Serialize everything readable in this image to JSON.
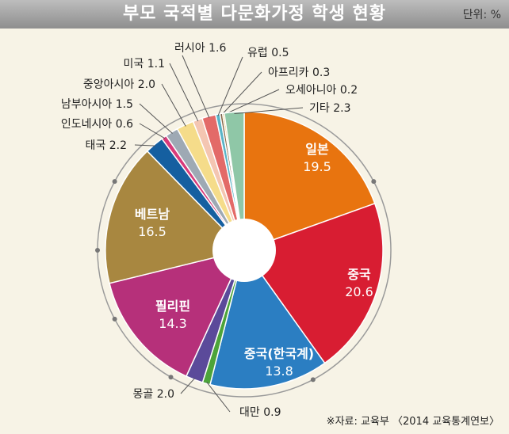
{
  "title": "부모 국적별 다문화가정 학생 현황",
  "unit": "단위: %",
  "source": "※자료: 교육부 〈2014 교육통계연보〉",
  "chart_data": {
    "type": "pie",
    "title": "부모 국적별 다문화가정 학생 현황",
    "unit": "%",
    "slices": [
      {
        "label": "일본",
        "value": 19.5,
        "color": "#e8740f"
      },
      {
        "label": "중국",
        "value": 20.6,
        "color": "#d81d32"
      },
      {
        "label": "중국(한국계)",
        "value": 13.8,
        "color": "#2b7ec2"
      },
      {
        "label": "대만",
        "value": 0.9,
        "color": "#4da43a"
      },
      {
        "label": "몽골",
        "value": 2.0,
        "color": "#5b4a9a"
      },
      {
        "label": "필리핀",
        "value": 14.3,
        "color": "#b6307a"
      },
      {
        "label": "베트남",
        "value": 16.5,
        "color": "#a88740"
      },
      {
        "label": "태국",
        "value": 2.2,
        "color": "#155fa0"
      },
      {
        "label": "인도네시아",
        "value": 0.6,
        "color": "#d83a7a"
      },
      {
        "label": "남부아시아",
        "value": 1.5,
        "color": "#9ea9b4"
      },
      {
        "label": "중앙아시아",
        "value": 2.0,
        "color": "#f5dc8a"
      },
      {
        "label": "미국",
        "value": 1.1,
        "color": "#f4c6b2"
      },
      {
        "label": "러시아",
        "value": 1.6,
        "color": "#e36a68"
      },
      {
        "label": "유럽",
        "value": 0.5,
        "color": "#5ab4c7"
      },
      {
        "label": "아프리카",
        "value": 0.3,
        "color": "#8a6a4a"
      },
      {
        "label": "오세아니아",
        "value": 0.2,
        "color": "#e0c25a"
      },
      {
        "label": "기타",
        "value": 2.3,
        "color": "#8fc7a7"
      }
    ],
    "legend": "none"
  }
}
